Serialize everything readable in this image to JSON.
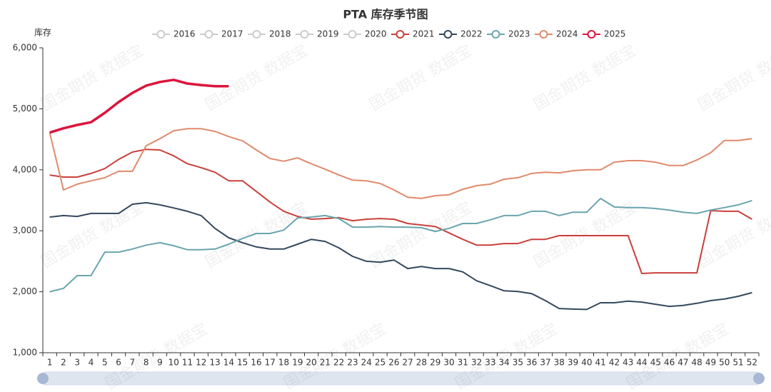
{
  "chart_data": {
    "type": "line",
    "title": "PTA 库存季节图",
    "y_label": "库存",
    "watermark": "国金期货 数据宝",
    "categories": [
      "1",
      "2",
      "3",
      "4",
      "5",
      "6",
      "7",
      "8",
      "9",
      "10",
      "11",
      "12",
      "13",
      "14",
      "15",
      "16",
      "17",
      "18",
      "19",
      "20",
      "21",
      "22",
      "23",
      "24",
      "25",
      "26",
      "27",
      "28",
      "29",
      "30",
      "31",
      "32",
      "33",
      "34",
      "35",
      "36",
      "37",
      "38",
      "39",
      "40",
      "41",
      "42",
      "43",
      "44",
      "45",
      "46",
      "47",
      "48",
      "49",
      "50",
      "51",
      "52"
    ],
    "inactive_legend": [
      {
        "name": "2016",
        "color": "#cccccc"
      },
      {
        "name": "2017",
        "color": "#cccccc"
      },
      {
        "name": "2018",
        "color": "#cccccc"
      },
      {
        "name": "2019",
        "color": "#cccccc"
      },
      {
        "name": "2020",
        "color": "#cccccc"
      }
    ],
    "series": [
      {
        "name": "2021",
        "color": "#c9403a",
        "values": [
          3915,
          3880,
          3880,
          3940,
          4020,
          4170,
          4290,
          4335,
          4325,
          4230,
          4100,
          4035,
          3960,
          3820,
          3820,
          3645,
          3470,
          3320,
          3235,
          3190,
          3200,
          3215,
          3165,
          3190,
          3200,
          3190,
          3120,
          3095,
          3070,
          2965,
          2860,
          2765,
          2765,
          2790,
          2790,
          2860,
          2860,
          2920,
          2920,
          2920,
          2920,
          2920,
          2920,
          2300,
          2310,
          2310,
          2310,
          2310,
          3330,
          3320,
          3320,
          3190
        ]
      },
      {
        "name": "2022",
        "color": "#34495e",
        "values": [
          3225,
          3250,
          3235,
          3285,
          3285,
          3285,
          3435,
          3460,
          3425,
          3375,
          3320,
          3250,
          3040,
          2885,
          2805,
          2735,
          2700,
          2700,
          2780,
          2860,
          2825,
          2720,
          2580,
          2500,
          2485,
          2520,
          2380,
          2415,
          2380,
          2380,
          2325,
          2180,
          2100,
          2015,
          2005,
          1970,
          1855,
          1725,
          1715,
          1710,
          1820,
          1820,
          1845,
          1830,
          1795,
          1760,
          1775,
          1810,
          1855,
          1880,
          1925,
          1985
        ]
      },
      {
        "name": "2023",
        "color": "#6aa5ae",
        "values": [
          2000,
          2055,
          2265,
          2265,
          2650,
          2650,
          2700,
          2765,
          2805,
          2755,
          2690,
          2690,
          2700,
          2780,
          2875,
          2955,
          2955,
          3010,
          3210,
          3225,
          3250,
          3200,
          3060,
          3060,
          3070,
          3060,
          3060,
          3050,
          2990,
          3040,
          3120,
          3120,
          3180,
          3250,
          3250,
          3320,
          3320,
          3250,
          3305,
          3305,
          3530,
          3390,
          3380,
          3380,
          3365,
          3340,
          3305,
          3285,
          3340,
          3380,
          3425,
          3495
        ]
      },
      {
        "name": "2024",
        "color": "#e08a6c",
        "values": [
          4610,
          3670,
          3765,
          3820,
          3870,
          3975,
          3975,
          4395,
          4510,
          4640,
          4675,
          4675,
          4630,
          4545,
          4475,
          4325,
          4185,
          4140,
          4195,
          4100,
          4010,
          3915,
          3830,
          3820,
          3775,
          3670,
          3550,
          3530,
          3575,
          3590,
          3680,
          3740,
          3765,
          3845,
          3870,
          3940,
          3960,
          3950,
          3985,
          4000,
          4000,
          4125,
          4150,
          4150,
          4125,
          4070,
          4070,
          4160,
          4280,
          4480,
          4480,
          4510
        ]
      },
      {
        "name": "2025",
        "color": "#dc143c",
        "width": 3.5,
        "values": [
          4610,
          4680,
          4735,
          4780,
          4935,
          5110,
          5260,
          5380,
          5440,
          5475,
          5415,
          5390,
          5370,
          5370,
          null,
          null,
          null,
          null,
          null,
          null,
          null,
          null,
          null,
          null,
          null,
          null,
          null,
          null,
          null,
          null,
          null,
          null,
          null,
          null,
          null,
          null,
          null,
          null,
          null,
          null,
          null,
          null,
          null,
          null,
          null,
          null,
          null,
          null,
          null,
          null,
          null,
          null
        ]
      }
    ],
    "ylim": [
      1000,
      6000
    ],
    "yticks": [
      {
        "value": 1000,
        "label": "1,000"
      },
      {
        "value": 2000,
        "label": "2,000"
      },
      {
        "value": 3000,
        "label": "3,000"
      },
      {
        "value": 4000,
        "label": "4,000"
      },
      {
        "value": 5000,
        "label": "5,000"
      },
      {
        "value": 6000,
        "label": "6,000"
      }
    ],
    "grid": false
  }
}
